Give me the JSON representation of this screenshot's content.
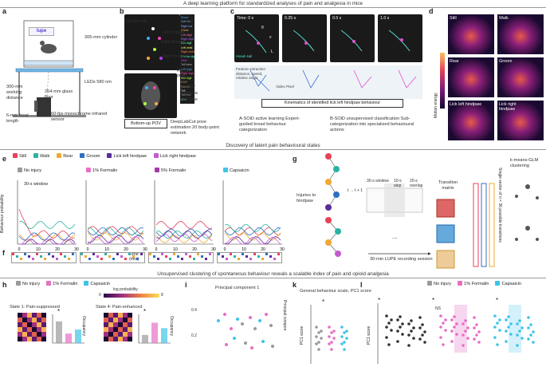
{
  "sections": {
    "top": "A deep learning platform for standardized analyses of pain and analgesia in mice",
    "middle": "Discovery of latent pain behavioural states",
    "bottom": "Unsupervised clustering of spontaneous behaviour reveals a scalable index of pain and opioid analgesia"
  },
  "panel_letters": [
    "a",
    "b",
    "c",
    "d",
    "e",
    "f",
    "g",
    "h",
    "i",
    "k",
    "l"
  ],
  "panel_a": {
    "logo": "lupe",
    "cylinder": "305-mm cylinder",
    "floor": "254-mm glass floor",
    "leds": "LEDs 580 nm",
    "distance": "300-mm working distance",
    "focal": "6-mm focal length",
    "camera": "60-fps monochrome infrared sensor"
  },
  "panel_b": {
    "labels": [
      "Cylinder wall",
      "Head",
      "Left forepaw",
      "Right forepaw",
      "Right hindpaw",
      "Faecal pellet",
      "Left hindpaw",
      "Genitalia",
      "Tail base"
    ],
    "keypoints": [
      "Snout",
      "Left ear",
      "Right ear",
      "Chest",
      "Left digit",
      "Right digit",
      "Mid digit",
      "Left wrist",
      "Right wrist",
      "Plantar digit",
      "Heel",
      "Tail base",
      "Left digit",
      "Right digit",
      "Mid digit",
      "Heel",
      "Faecal",
      "Tail",
      "Tail end",
      "Wall"
    ],
    "pov": "Bottom-up POV",
    "caption": "DeepLabCut pose estimation 20 body-point network"
  },
  "panel_c": {
    "times": [
      "Time: 0 s",
      "0.25 s",
      "0.5 s",
      "1.0 s"
    ],
    "markers": [
      "θ",
      "v",
      "L"
    ],
    "legend": "Head–tail",
    "note": "Feature extraction distance, speed, relative angle",
    "pixel": "Video Pixel",
    "title": "Kinematics of identified lick left hindpaw behaviour",
    "caption_a": "A-SOiD active learning Expert-guided broad behaviour categorization",
    "caption_b": "B-SOiD unsupervised classification Sub-categorization into specialized behavioural actions"
  },
  "panel_d": {
    "tiles": [
      "Still",
      "Walk",
      "Rear",
      "Groom",
      "Lick left hindpaw",
      "Lick right hindpaw"
    ],
    "axis": "Motion energy"
  },
  "panel_e": {
    "legend": [
      "Still",
      "Walk",
      "Rear",
      "Groom",
      "Lick left hindpaw",
      "Lick right hindpaw"
    ],
    "legend_colors": [
      "#e8415a",
      "#2ab3a2",
      "#f0a830",
      "#2d6fc2",
      "#5b2b9a",
      "#c45ccf"
    ],
    "conditions": [
      "No injury",
      "1% Formalin",
      "5% Formalin",
      "Capsaicin"
    ],
    "condition_colors": [
      "#9a9a9a",
      "#e76fc4",
      "#a23aa8",
      "#3fc4e8"
    ],
    "window": "30-s window",
    "ylabel": "Behaviour probability",
    "xlabel": "Time (min)"
  },
  "panel_f": {
    "label": "f"
  },
  "panel_g": {
    "injury": "Injuries to hindpaw",
    "time": "t → t + 1",
    "window": "30-s window",
    "step": "10-s step",
    "overlap": "20-s overlap",
    "session": "30-min LUPE recording session",
    "matrix": "Transition matrix",
    "vector": "Single vector of n = 36 possible transitions",
    "cluster": "k-means-GLM clustering",
    "dots": "..."
  },
  "panel_h": {
    "legend": [
      "No injury",
      "1% Formalin",
      "Capsaicin"
    ],
    "legend_colors": [
      "#9a9a9a",
      "#e76fc4",
      "#3fc4e8"
    ],
    "scale": "log probability",
    "scale_min": "0",
    "scale_max": "8",
    "state1": "State 1: Pain-suppressed",
    "state4": "State 4: Pain-enhanced",
    "occupancy": "Occupancy",
    "star": "*"
  },
  "panel_i": {
    "title": "Principal component 1",
    "side": "Principal compon",
    "ticks": [
      "0.4",
      "0.2"
    ]
  },
  "panel_k": {
    "title": "General behaviour scale, PC1 score",
    "ylabel": "PC1 score",
    "star": "*"
  },
  "panel_l": {
    "legend": [
      "No injury",
      "1% Formalin",
      "Capsaicin"
    ],
    "legend_colors": [
      "#9a9a9a",
      "#e76fc4",
      "#3fc4e8"
    ],
    "ns": "NS",
    "star": "*",
    "ylabel": "PC1 score"
  }
}
